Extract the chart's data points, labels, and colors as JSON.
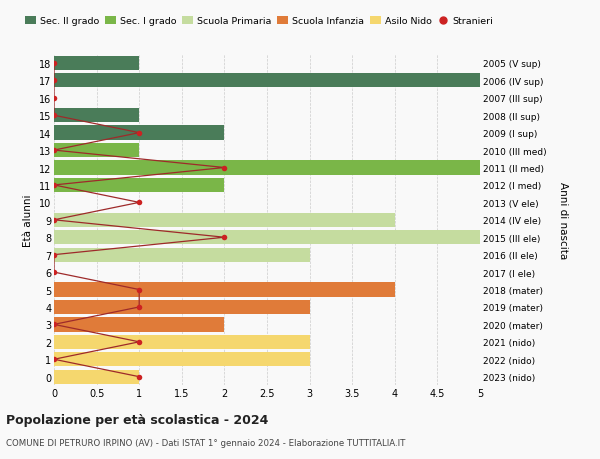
{
  "title": "Popolazione per età scolastica - 2024",
  "subtitle": "COMUNE DI PETRURO IRPINO (AV) - Dati ISTAT 1° gennaio 2024 - Elaborazione TUTTITALIA.IT",
  "xlabel_right": "Anni di nascita",
  "ylabel": "Età alunni",
  "xlim": [
    0,
    5.0
  ],
  "xticks": [
    0,
    0.5,
    1.0,
    1.5,
    2.0,
    2.5,
    3.0,
    3.5,
    4.0,
    4.5,
    5.0
  ],
  "ages": [
    18,
    17,
    16,
    15,
    14,
    13,
    12,
    11,
    10,
    9,
    8,
    7,
    6,
    5,
    4,
    3,
    2,
    1,
    0
  ],
  "right_labels": [
    "2005 (V sup)",
    "2006 (IV sup)",
    "2007 (III sup)",
    "2008 (II sup)",
    "2009 (I sup)",
    "2010 (III med)",
    "2011 (II med)",
    "2012 (I med)",
    "2013 (V ele)",
    "2014 (IV ele)",
    "2015 (III ele)",
    "2016 (II ele)",
    "2017 (I ele)",
    "2018 (mater)",
    "2019 (mater)",
    "2020 (mater)",
    "2021 (nido)",
    "2022 (nido)",
    "2023 (nido)"
  ],
  "bars": [
    {
      "age": 18,
      "value": 1,
      "color": "#4a7c59"
    },
    {
      "age": 17,
      "value": 5,
      "color": "#4a7c59"
    },
    {
      "age": 16,
      "value": 0,
      "color": "#4a7c59"
    },
    {
      "age": 15,
      "value": 1,
      "color": "#4a7c59"
    },
    {
      "age": 14,
      "value": 2,
      "color": "#4a7c59"
    },
    {
      "age": 13,
      "value": 1,
      "color": "#7ab648"
    },
    {
      "age": 12,
      "value": 5,
      "color": "#7ab648"
    },
    {
      "age": 11,
      "value": 2,
      "color": "#7ab648"
    },
    {
      "age": 10,
      "value": 0,
      "color": "#c5dc9f"
    },
    {
      "age": 9,
      "value": 4,
      "color": "#c5dc9f"
    },
    {
      "age": 8,
      "value": 5,
      "color": "#c5dc9f"
    },
    {
      "age": 7,
      "value": 3,
      "color": "#c5dc9f"
    },
    {
      "age": 6,
      "value": 0,
      "color": "#c5dc9f"
    },
    {
      "age": 5,
      "value": 4,
      "color": "#e07b39"
    },
    {
      "age": 4,
      "value": 3,
      "color": "#e07b39"
    },
    {
      "age": 3,
      "value": 2,
      "color": "#e07b39"
    },
    {
      "age": 2,
      "value": 3,
      "color": "#f5d76e"
    },
    {
      "age": 1,
      "value": 3,
      "color": "#f5d76e"
    },
    {
      "age": 0,
      "value": 1,
      "color": "#f5d76e"
    }
  ],
  "stranieri": [
    {
      "age": 18,
      "value": 0
    },
    {
      "age": 17,
      "value": 0
    },
    {
      "age": 16,
      "value": 0
    },
    {
      "age": 15,
      "value": 0
    },
    {
      "age": 14,
      "value": 1
    },
    {
      "age": 13,
      "value": 0
    },
    {
      "age": 12,
      "value": 2
    },
    {
      "age": 11,
      "value": 0
    },
    {
      "age": 10,
      "value": 1
    },
    {
      "age": 9,
      "value": 0
    },
    {
      "age": 8,
      "value": 2
    },
    {
      "age": 7,
      "value": 0
    },
    {
      "age": 6,
      "value": 0
    },
    {
      "age": 5,
      "value": 1
    },
    {
      "age": 4,
      "value": 1
    },
    {
      "age": 3,
      "value": 0
    },
    {
      "age": 2,
      "value": 1
    },
    {
      "age": 1,
      "value": 0
    },
    {
      "age": 0,
      "value": 1
    }
  ],
  "legend": [
    {
      "label": "Sec. II grado",
      "color": "#4a7c59"
    },
    {
      "label": "Sec. I grado",
      "color": "#7ab648"
    },
    {
      "label": "Scuola Primaria",
      "color": "#c5dc9f"
    },
    {
      "label": "Scuola Infanzia",
      "color": "#e07b39"
    },
    {
      "label": "Asilo Nido",
      "color": "#f5d76e"
    },
    {
      "label": "Stranieri",
      "color": "#cc2222"
    }
  ],
  "bg_color": "#f9f9f9",
  "grid_color": "#cccccc",
  "stranieri_line_color": "#9e2a2a",
  "stranieri_dot_color": "#cc2222"
}
